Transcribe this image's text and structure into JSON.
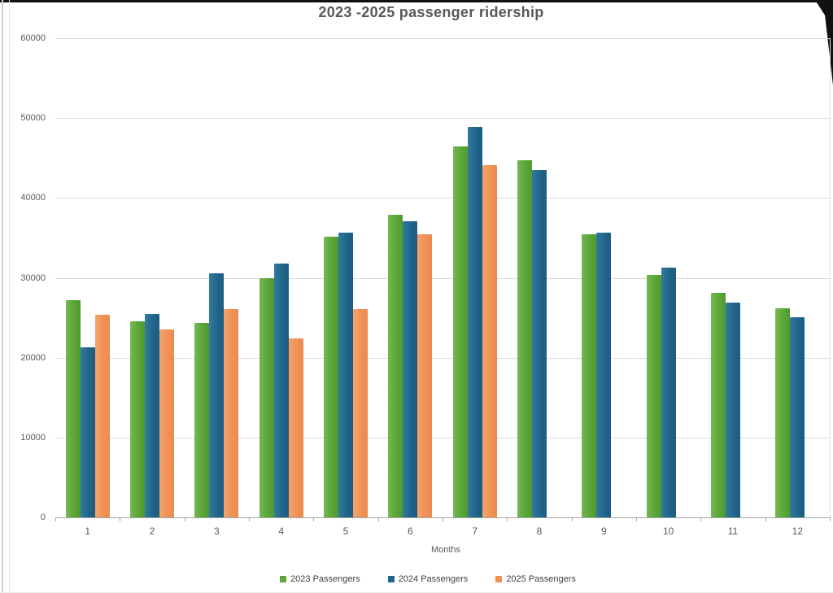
{
  "chart_data": {
    "type": "bar",
    "title": "2023 -2025 passenger ridership",
    "xlabel": "Months",
    "categories": [
      "1",
      "2",
      "3",
      "4",
      "5",
      "6",
      "7",
      "8",
      "9",
      "10",
      "11",
      "12"
    ],
    "series": [
      {
        "name": "2023 Passengers",
        "color": "#5BA637",
        "color_light": "#74b855",
        "color_dark": "#4f9a30",
        "values": [
          27200,
          24500,
          24300,
          29900,
          35100,
          37900,
          46500,
          44700,
          35400,
          30400,
          28100,
          26200
        ]
      },
      {
        "name": "2024 Passengers",
        "color": "#21658A",
        "color_light": "#337a9e",
        "color_dark": "#1c5c80",
        "values": [
          21300,
          25500,
          30600,
          31800,
          35700,
          37100,
          48900,
          43500,
          35700,
          31300,
          26900,
          25100
        ]
      },
      {
        "name": "2025 Passengers",
        "color": "#EF9255",
        "color_light": "#f5a36c",
        "color_dark": "#eb8a4e",
        "values": [
          25400,
          23500,
          26100,
          22400,
          26100,
          35400,
          44100,
          null,
          null,
          null,
          null,
          null
        ]
      }
    ],
    "ylim": [
      0,
      60000
    ],
    "ytick_interval": 10000,
    "yticks": [
      "0",
      "10000",
      "20000",
      "30000",
      "40000",
      "50000",
      "60000"
    ],
    "grid": true,
    "legend_position": "bottom"
  },
  "style": {
    "title_color": "#595959",
    "axis_label_color": "#595959",
    "legend_text_color": "#404040",
    "gridline_color": "#d9d9d9",
    "axis_line_color": "#a6a6a6"
  }
}
